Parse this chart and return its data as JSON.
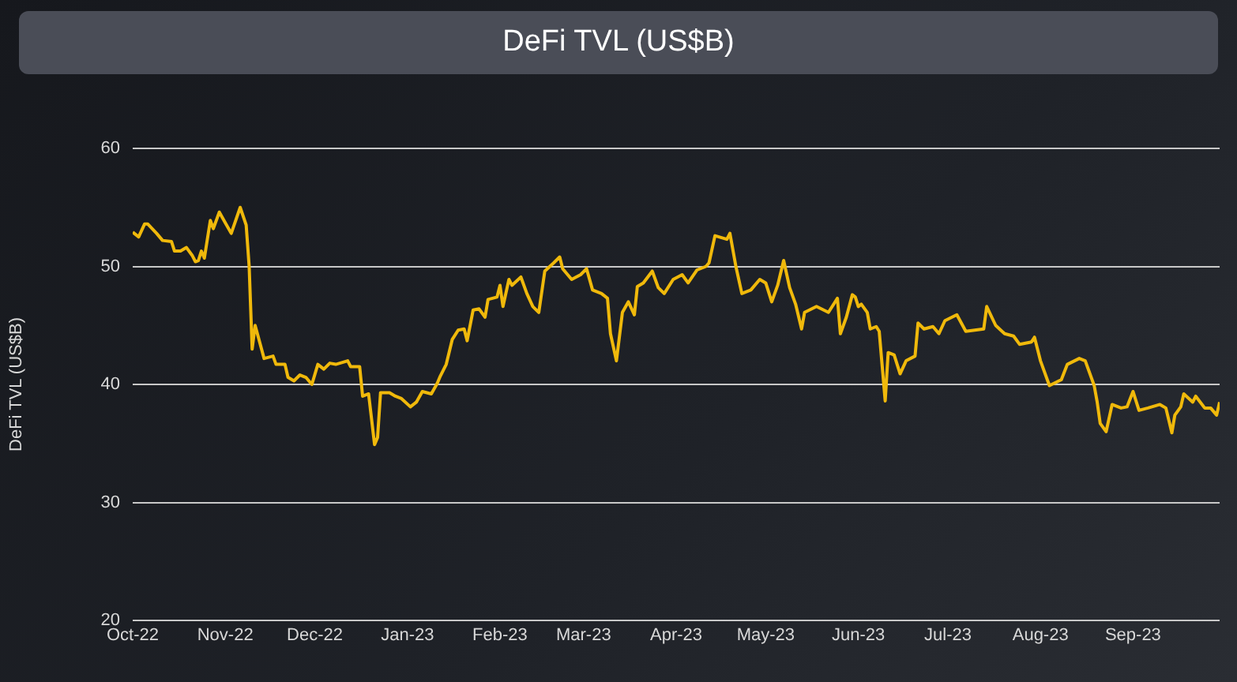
{
  "chart_data": {
    "type": "line",
    "title": "DeFi TVL (US$B)",
    "ylabel": "DeFi TVL (US$B)",
    "xlim": [
      "2022-10-01",
      "2023-09-30"
    ],
    "xticks": [
      {
        "value": "2022-10-01",
        "label": "Oct-22"
      },
      {
        "value": "2022-11-01",
        "label": "Nov-22"
      },
      {
        "value": "2022-12-01",
        "label": "Dec-22"
      },
      {
        "value": "2023-01-01",
        "label": "Jan-23"
      },
      {
        "value": "2023-02-01",
        "label": "Feb-23"
      },
      {
        "value": "2023-03-01",
        "label": "Mar-23"
      },
      {
        "value": "2023-04-01",
        "label": "Apr-23"
      },
      {
        "value": "2023-05-01",
        "label": "May-23"
      },
      {
        "value": "2023-06-01",
        "label": "Jun-23"
      },
      {
        "value": "2023-07-01",
        "label": "Jul-23"
      },
      {
        "value": "2023-08-01",
        "label": "Aug-23"
      },
      {
        "value": "2023-09-01",
        "label": "Sep-23"
      }
    ],
    "ylim": [
      20,
      60
    ],
    "yticks": [
      20,
      30,
      40,
      50,
      60
    ],
    "grid": "y",
    "legend": false,
    "marker": "none",
    "line_style": "solid",
    "x": [
      "2022-10-01",
      "2022-10-03",
      "2022-10-05",
      "2022-10-06",
      "2022-10-09",
      "2022-10-11",
      "2022-10-14",
      "2022-10-15",
      "2022-10-17",
      "2022-10-19",
      "2022-10-21",
      "2022-10-22",
      "2022-10-23",
      "2022-10-24",
      "2022-10-25",
      "2022-10-27",
      "2022-10-28",
      "2022-10-30",
      "2022-11-01",
      "2022-11-03",
      "2022-11-06",
      "2022-11-08",
      "2022-11-09",
      "2022-11-10",
      "2022-11-11",
      "2022-11-14",
      "2022-11-17",
      "2022-11-18",
      "2022-11-21",
      "2022-11-22",
      "2022-11-24",
      "2022-11-26",
      "2022-11-28",
      "2022-11-30",
      "2022-12-02",
      "2022-12-04",
      "2022-12-06",
      "2022-12-08",
      "2022-12-12",
      "2022-12-13",
      "2022-12-16",
      "2022-12-17",
      "2022-12-19",
      "2022-12-21",
      "2022-12-22",
      "2022-12-23",
      "2022-12-26",
      "2022-12-28",
      "2022-12-30",
      "2023-01-02",
      "2023-01-04",
      "2023-01-06",
      "2023-01-09",
      "2023-01-11",
      "2023-01-12",
      "2023-01-14",
      "2023-01-16",
      "2023-01-18",
      "2023-01-20",
      "2023-01-21",
      "2023-01-23",
      "2023-01-25",
      "2023-01-27",
      "2023-01-28",
      "2023-01-31",
      "2023-02-01",
      "2023-02-02",
      "2023-02-04",
      "2023-02-05",
      "2023-02-08",
      "2023-02-10",
      "2023-02-12",
      "2023-02-14",
      "2023-02-16",
      "2023-02-19",
      "2023-02-21",
      "2023-02-22",
      "2023-02-25",
      "2023-02-28",
      "2023-03-02",
      "2023-03-04",
      "2023-03-07",
      "2023-03-09",
      "2023-03-10",
      "2023-03-12",
      "2023-03-14",
      "2023-03-16",
      "2023-03-18",
      "2023-03-19",
      "2023-03-21",
      "2023-03-24",
      "2023-03-26",
      "2023-03-28",
      "2023-03-31",
      "2023-04-03",
      "2023-04-05",
      "2023-04-08",
      "2023-04-11",
      "2023-04-12",
      "2023-04-14",
      "2023-04-18",
      "2023-04-19",
      "2023-04-21",
      "2023-04-23",
      "2023-04-26",
      "2023-04-29",
      "2023-05-01",
      "2023-05-03",
      "2023-05-05",
      "2023-05-07",
      "2023-05-09",
      "2023-05-11",
      "2023-05-13",
      "2023-05-14",
      "2023-05-18",
      "2023-05-22",
      "2023-05-25",
      "2023-05-26",
      "2023-05-28",
      "2023-05-30",
      "2023-05-31",
      "2023-06-01",
      "2023-06-02",
      "2023-06-04",
      "2023-06-05",
      "2023-06-07",
      "2023-06-08",
      "2023-06-10",
      "2023-06-11",
      "2023-06-13",
      "2023-06-15",
      "2023-06-17",
      "2023-06-20",
      "2023-06-21",
      "2023-06-23",
      "2023-06-26",
      "2023-06-28",
      "2023-06-30",
      "2023-07-04",
      "2023-07-07",
      "2023-07-10",
      "2023-07-13",
      "2023-07-14",
      "2023-07-17",
      "2023-07-20",
      "2023-07-23",
      "2023-07-25",
      "2023-07-29",
      "2023-07-30",
      "2023-08-01",
      "2023-08-04",
      "2023-08-08",
      "2023-08-10",
      "2023-08-14",
      "2023-08-16",
      "2023-08-19",
      "2023-08-20",
      "2023-08-21",
      "2023-08-23",
      "2023-08-25",
      "2023-08-28",
      "2023-08-30",
      "2023-09-01",
      "2023-09-03",
      "2023-09-06",
      "2023-09-10",
      "2023-09-12",
      "2023-09-14",
      "2023-09-15",
      "2023-09-17",
      "2023-09-18",
      "2023-09-21",
      "2023-09-22",
      "2023-09-25",
      "2023-09-27",
      "2023-09-29",
      "2023-09-30"
    ],
    "series": [
      {
        "color": "#f0b90b",
        "values": [
          52.9,
          52.5,
          53.6,
          53.6,
          52.8,
          52.2,
          52.1,
          51.3,
          51.3,
          51.6,
          50.9,
          50.4,
          50.5,
          51.3,
          50.7,
          53.9,
          53.2,
          54.6,
          53.7,
          52.8,
          55.0,
          53.5,
          50.0,
          43.0,
          45.0,
          42.2,
          42.4,
          41.7,
          41.7,
          40.6,
          40.3,
          40.8,
          40.6,
          40.0,
          41.7,
          41.3,
          41.8,
          41.7,
          42.0,
          41.5,
          41.5,
          39.0,
          39.2,
          34.9,
          35.5,
          39.3,
          39.3,
          39.0,
          38.8,
          38.1,
          38.5,
          39.4,
          39.2,
          40.1,
          40.7,
          41.7,
          43.8,
          44.6,
          44.7,
          43.7,
          46.3,
          46.4,
          45.7,
          47.2,
          47.4,
          48.4,
          46.6,
          48.9,
          48.4,
          49.1,
          47.7,
          46.6,
          46.1,
          49.6,
          50.3,
          50.8,
          49.8,
          48.9,
          49.3,
          49.8,
          48.0,
          47.7,
          47.3,
          44.3,
          42.0,
          46.1,
          47.0,
          45.9,
          48.3,
          48.6,
          49.6,
          48.2,
          47.7,
          48.9,
          49.3,
          48.6,
          49.7,
          50.0,
          50.3,
          52.6,
          52.3,
          52.8,
          50.0,
          47.7,
          48.0,
          48.9,
          48.6,
          47.0,
          48.4,
          50.5,
          48.2,
          46.8,
          44.7,
          46.1,
          46.6,
          46.1,
          47.3,
          44.3,
          45.7,
          47.6,
          47.4,
          46.6,
          46.8,
          46.1,
          44.7,
          44.9,
          44.5,
          38.6,
          42.7,
          42.5,
          40.9,
          42.0,
          42.4,
          45.2,
          44.7,
          44.9,
          44.3,
          45.4,
          45.9,
          44.5,
          44.6,
          44.7,
          46.6,
          45.0,
          44.3,
          44.1,
          43.4,
          43.6,
          44.0,
          42.0,
          39.9,
          40.4,
          41.7,
          42.2,
          42.0,
          39.9,
          38.5,
          36.7,
          36.0,
          38.3,
          38.0,
          38.1,
          39.4,
          37.8,
          38.0,
          38.3,
          38.0,
          35.9,
          37.4,
          38.1,
          39.2,
          38.5,
          39.0,
          38.0,
          38.0,
          37.4,
          38.5
        ]
      }
    ]
  }
}
